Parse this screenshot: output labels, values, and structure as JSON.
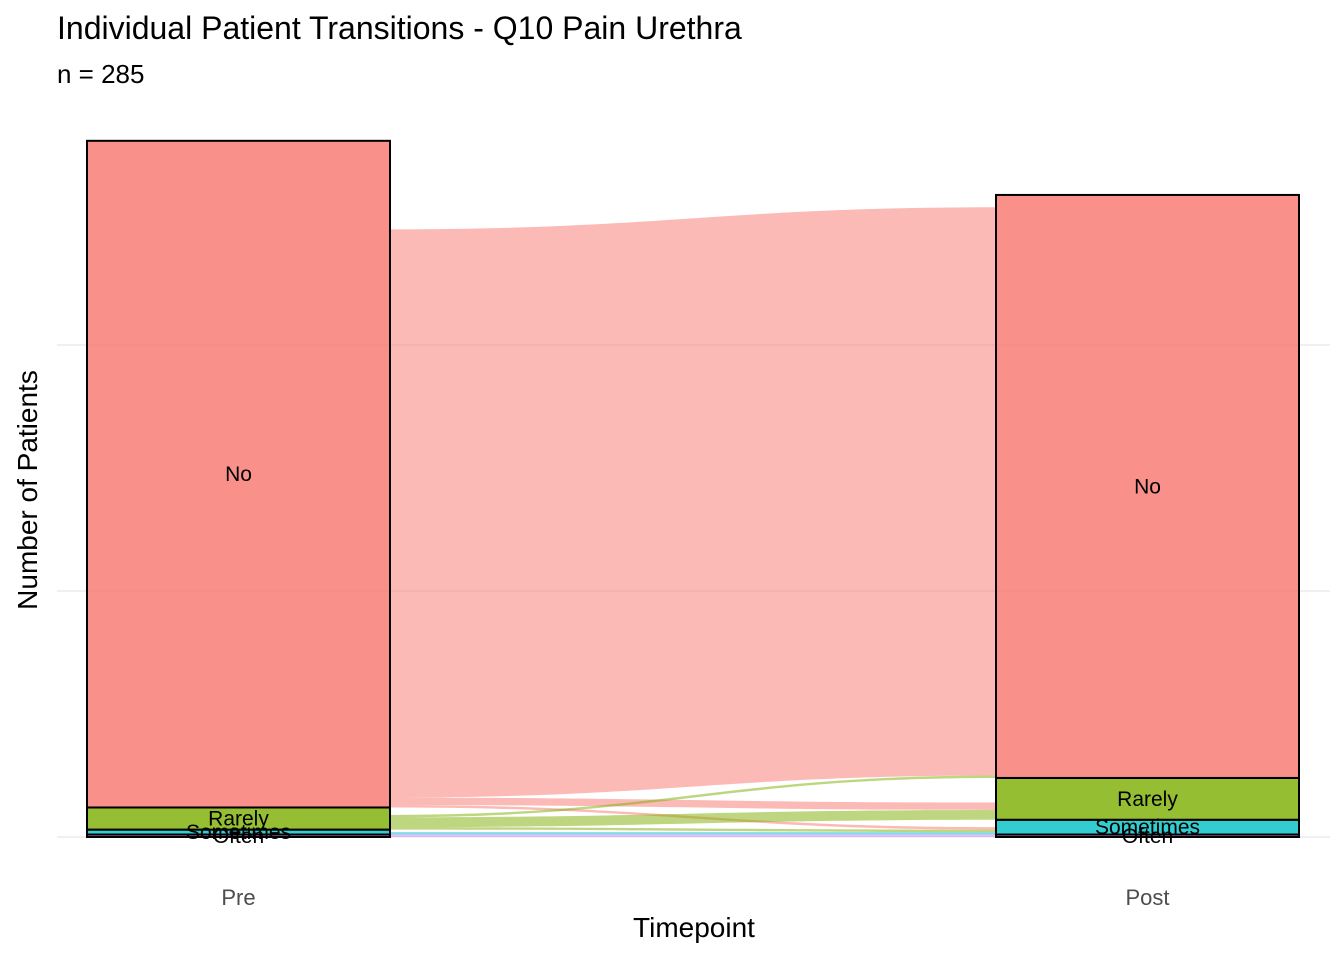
{
  "chart_data": {
    "type": "alluvial",
    "title": "Individual Patient Transitions - Q10 Pain Urethra",
    "subtitle": "n = 285",
    "xlabel": "Timepoint",
    "ylabel": "Number of Patients",
    "ylim": [
      0,
      285
    ],
    "y_gridlines": [
      0,
      100,
      200
    ],
    "grid": true,
    "categories": [
      "Pre",
      "Post"
    ],
    "states": [
      "No",
      "Rarely",
      "Sometimes",
      "Often"
    ],
    "colors": {
      "No": "#F8766D",
      "Rarely": "#7CAE00",
      "Sometimes": "#00BFC4",
      "Often": "#C77CFF"
    },
    "stratum_counts": {
      "Pre": {
        "No": 271,
        "Rarely": 9,
        "Sometimes": 2,
        "Often": 1
      },
      "Post": {
        "No": 237,
        "Rarely": 17,
        "Sometimes": 6,
        "Often": 1
      }
    },
    "flows": [
      {
        "from": "No",
        "to": "No",
        "count": 231
      },
      {
        "from": "No",
        "to": "Rarely",
        "count": 3
      },
      {
        "from": "No",
        "to": "Sometimes",
        "count": 1
      },
      {
        "from": "Rarely",
        "to": "No",
        "count": 1
      },
      {
        "from": "Rarely",
        "to": "Rarely",
        "count": 4
      },
      {
        "from": "Rarely",
        "to": "Sometimes",
        "count": 1
      },
      {
        "from": "Sometimes",
        "to": "Sometimes",
        "count": 1
      },
      {
        "from": "Often",
        "to": "Often",
        "count": 1
      }
    ]
  }
}
